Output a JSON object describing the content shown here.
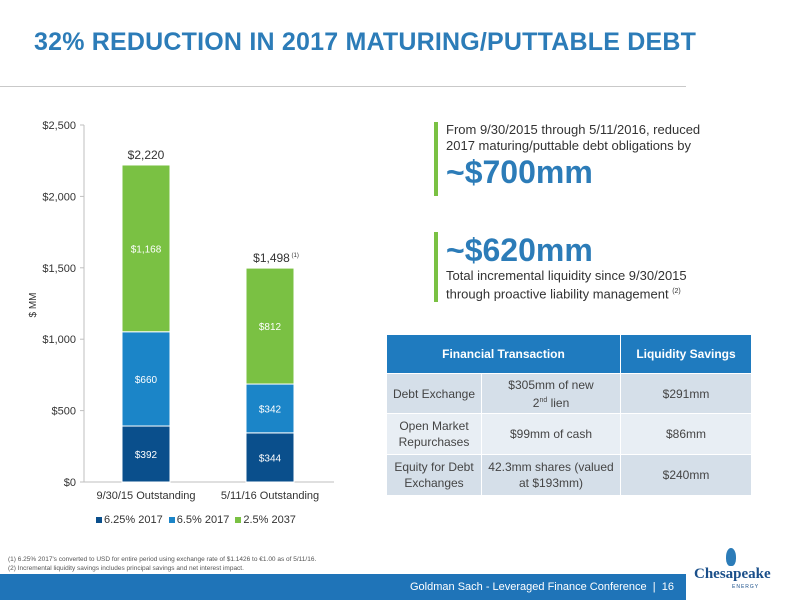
{
  "title": "32% REDUCTION IN 2017 MATURING/PUTTABLE DEBT",
  "chart_data": {
    "type": "bar",
    "stacked": true,
    "categories": [
      "9/30/15 Outstanding",
      "5/11/16 Outstanding"
    ],
    "series": [
      {
        "name": "6.25% 2017",
        "color": "#0a4f8c",
        "values": [
          392,
          344
        ],
        "labels": [
          "$392",
          "$344"
        ]
      },
      {
        "name": "6.5% 2017",
        "color": "#1b85c8",
        "values": [
          660,
          342
        ],
        "labels": [
          "$660",
          "$342"
        ]
      },
      {
        "name": "2.5% 2037",
        "color": "#7ac143",
        "values": [
          1168,
          812
        ],
        "labels": [
          "$1,168",
          "$812"
        ]
      }
    ],
    "totals": [
      2220,
      1498
    ],
    "total_labels": [
      "$2,220",
      "$1,498"
    ],
    "total_note": "(1)",
    "ylabel": "$ MM",
    "ylim": [
      0,
      2500
    ],
    "yticks": [
      0,
      500,
      1000,
      1500,
      2000,
      2500
    ],
    "ytick_labels": [
      "$0",
      "$500",
      "$1,000",
      "$1,500",
      "$2,000",
      "$2,500"
    ],
    "legend_position": "bottom",
    "grid": false
  },
  "callout1": {
    "text": "From 9/30/2015 through 5/11/2016, reduced 2017 maturing/puttable debt obligations by",
    "value": "~$700mm"
  },
  "callout2": {
    "value": "~$620mm",
    "text": "Total incremental liquidity since 9/30/2015 through proactive liability management",
    "note": "(2)"
  },
  "table": {
    "headers": [
      "Financial Transaction",
      "Liquidity Savings"
    ],
    "rows": [
      {
        "type": "Debt Exchange",
        "detail_a": "$305mm of new",
        "detail_b_num": "2",
        "detail_b_sup": "nd",
        "detail_b_rest": " lien",
        "savings": "$291mm"
      },
      {
        "type": "Open Market Repurchases",
        "detail": "$99mm of cash",
        "savings": "$86mm"
      },
      {
        "type": "Equity for Debt Exchanges",
        "detail": "42.3mm shares (valued at $193mm)",
        "savings": "$240mm"
      }
    ]
  },
  "footnotes": [
    "(1)  6.25% 2017's converted to USD for entire period using exchange rate of $1.1426 to €1.00 as of 5/11/16.",
    "(2)  Incremental liquidity savings includes principal savings and net interest impact."
  ],
  "footer": {
    "text": "Goldman Sach - Leveraged Finance Conference",
    "separator": "|",
    "page": "16"
  },
  "logo": {
    "name": "Chesapeake",
    "sub": "ENERGY"
  }
}
